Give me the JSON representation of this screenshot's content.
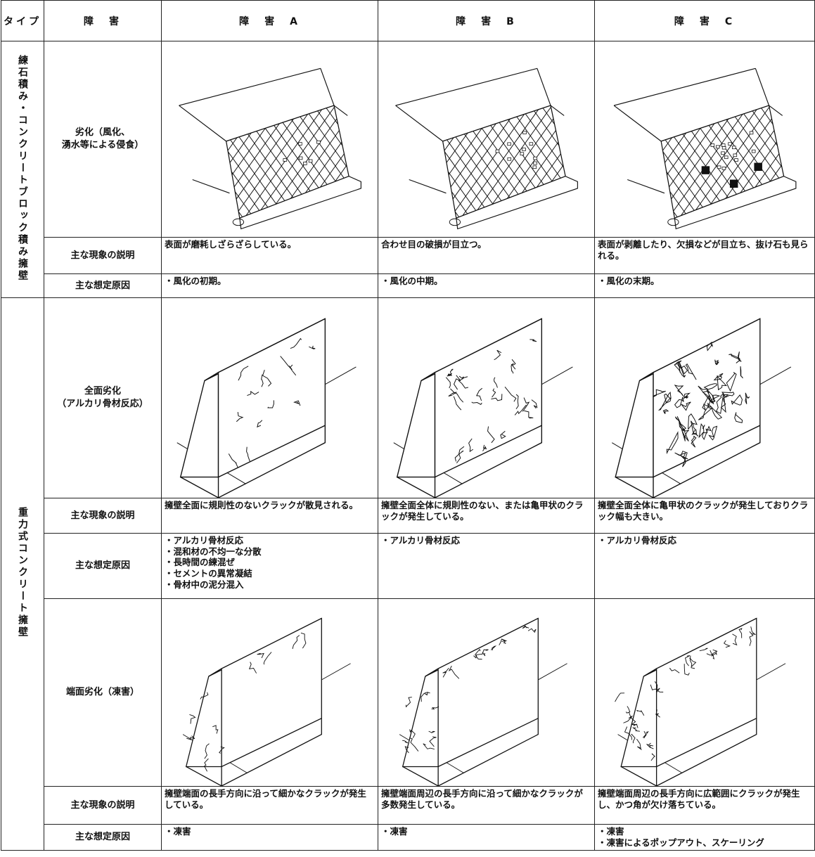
{
  "header": {
    "type": "タイプ",
    "damage": "障　害",
    "a": "障　害　A",
    "b": "障　害　B",
    "c": "障　害　C"
  },
  "sections": [
    {
      "type": "練石積み・コンクリートブロック積み擁壁",
      "groups": [
        {
          "damage": "劣化（風化、\n湧水等による侵食）",
          "desc_label": "主な現象の説明",
          "desc": [
            "表面が磨耗しざらざらしている。",
            "合わせ目の破損が目立つ。",
            "表面が剥離したり、欠損などが目立ち、抜け石も見られる。"
          ],
          "cause_label": "主な想定原因",
          "causes": [
            [
              "・風化の初期。"
            ],
            [
              "・風化の中期。"
            ],
            [
              "・風化の末期。"
            ]
          ]
        }
      ]
    },
    {
      "type": "重力式コンクリート擁壁",
      "groups": [
        {
          "damage": "全面劣化\n（アルカリ骨材反応）",
          "desc_label": "主な現象の説明",
          "desc": [
            "擁壁全面に規則性のないクラックが散見される。",
            "擁壁全面全体に規則性のない、または亀甲状のクラックが発生している。",
            "擁壁全面全体に亀甲状のクラックが発生しておりクラック幅も大きい。"
          ],
          "cause_label": "主な想定原因",
          "causes": [
            [
              "・アルカリ骨材反応",
              "・混和材の不均一な分散",
              "・長時間の練混ぜ",
              "・セメントの異常凝結",
              "・骨材中の泥分混入"
            ],
            [
              "・アルカリ骨材反応"
            ],
            [
              "・アルカリ骨材反応"
            ]
          ]
        },
        {
          "damage": "端面劣化（凍害）",
          "desc_label": "主な現象の説明",
          "desc": [
            "擁壁端面の長手方向に沿って細かなクラックが発生している。",
            "擁壁端面周辺の長手方向に沿って細かなクラックが多数発生している。",
            "擁壁端面周辺の長手方向に広範囲にクラックが発生し、かつ角が欠け落ちている。"
          ],
          "cause_label": "主な想定原因",
          "causes": [
            [
              "・凍害"
            ],
            [
              "・凍害"
            ],
            [
              "・凍害",
              "・凍害によるポップアウト、スケーリング"
            ]
          ]
        }
      ]
    }
  ]
}
